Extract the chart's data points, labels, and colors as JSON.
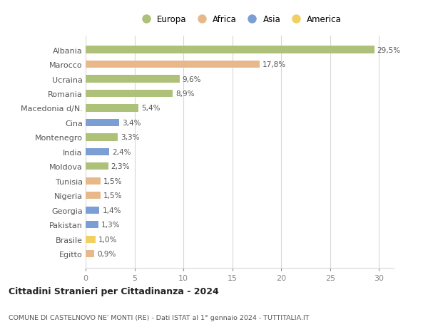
{
  "categories": [
    "Albania",
    "Marocco",
    "Ucraina",
    "Romania",
    "Macedonia d/N.",
    "Cina",
    "Montenegro",
    "India",
    "Moldova",
    "Tunisia",
    "Nigeria",
    "Georgia",
    "Pakistan",
    "Brasile",
    "Egitto"
  ],
  "values": [
    29.5,
    17.8,
    9.6,
    8.9,
    5.4,
    3.4,
    3.3,
    2.4,
    2.3,
    1.5,
    1.5,
    1.4,
    1.3,
    1.0,
    0.9
  ],
  "labels": [
    "29,5%",
    "17,8%",
    "9,6%",
    "8,9%",
    "5,4%",
    "3,4%",
    "3,3%",
    "2,4%",
    "2,3%",
    "1,5%",
    "1,5%",
    "1,4%",
    "1,3%",
    "1,0%",
    "0,9%"
  ],
  "continents": [
    "Europa",
    "Africa",
    "Europa",
    "Europa",
    "Europa",
    "Asia",
    "Europa",
    "Asia",
    "Europa",
    "Africa",
    "Africa",
    "Asia",
    "Asia",
    "America",
    "Africa"
  ],
  "colors": {
    "Europa": "#adc178",
    "Africa": "#e8b88a",
    "Asia": "#7b9fd4",
    "America": "#f0d060"
  },
  "legend_order": [
    "Europa",
    "Africa",
    "Asia",
    "America"
  ],
  "title1": "Cittadini Stranieri per Cittadinanza - 2024",
  "title2": "COMUNE DI CASTELNOVO NE' MONTI (RE) - Dati ISTAT al 1° gennaio 2024 - TUTTITALIA.IT",
  "xlim": [
    0,
    31.5
  ],
  "xticks": [
    0,
    5,
    10,
    15,
    20,
    25,
    30
  ],
  "background_color": "#ffffff",
  "grid_color": "#d8d8d8"
}
